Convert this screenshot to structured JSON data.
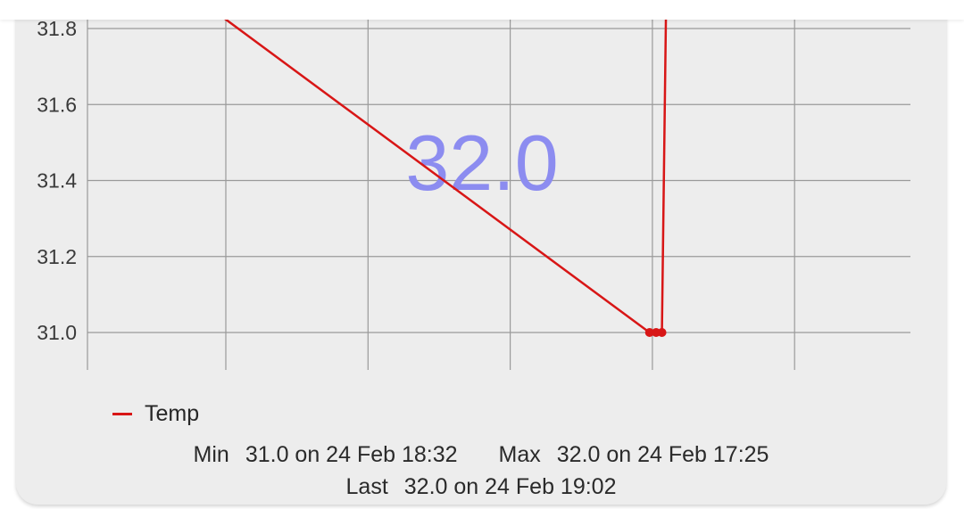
{
  "chart_data": {
    "type": "line",
    "y_ticks": [
      "31.8",
      "31.6",
      "31.4",
      "31.2",
      "31.0"
    ],
    "ylim": [
      31.0,
      31.8
    ],
    "series": [
      {
        "name": "Temp",
        "color": "#d81616",
        "points": [
          {
            "x_frac": 0.158,
            "y": 31.84
          },
          {
            "x_frac": 0.683,
            "y": 31.0
          },
          {
            "x_frac": 0.691,
            "y": 31.0
          },
          {
            "x_frac": 0.698,
            "y": 31.0
          },
          {
            "x_frac": 0.703,
            "y": 31.85
          }
        ]
      }
    ],
    "current_value": "32.0",
    "grid": true
  },
  "legend": {
    "label": "Temp"
  },
  "stats": {
    "min_label": "Min",
    "min_value": "31.0 on 24 Feb 18:32",
    "max_label": "Max",
    "max_value": "32.0 on 24 Feb 17:25",
    "last_label": "Last",
    "last_value": "32.0 on 24 Feb 19:02"
  },
  "colors": {
    "line": "#d81616",
    "big_value": "#8c8cf0",
    "card": "#ededed",
    "grid": "#9a9a9a"
  }
}
